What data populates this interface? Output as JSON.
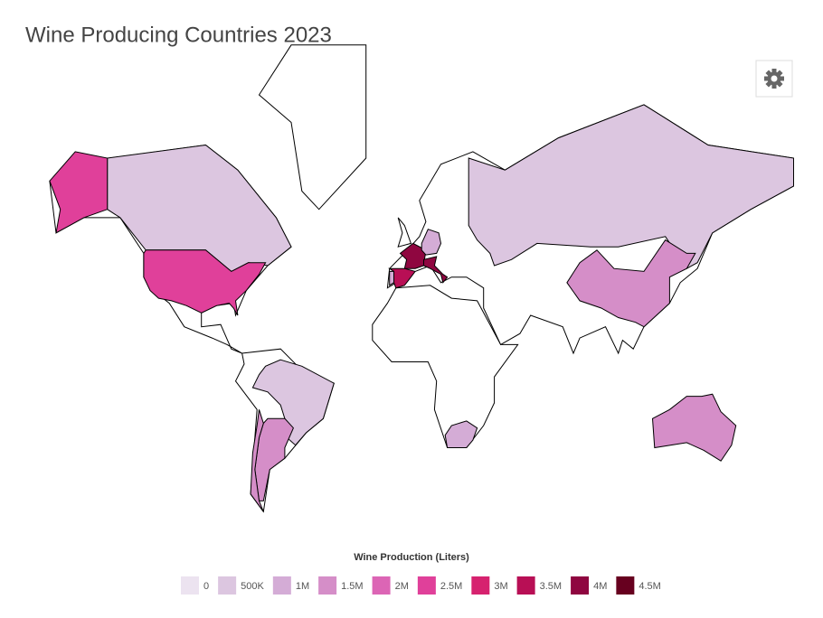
{
  "chart_data": {
    "type": "choropleth",
    "title": "Wine Producing Countries 2023",
    "legend_title": "Wine Production (Liters)",
    "legend": [
      {
        "value": 0,
        "color": "#ece3f0"
      },
      {
        "value": 500000,
        "label": "500K",
        "color": "#dcc6e0"
      },
      {
        "value": 1000000,
        "label": "1M",
        "color": "#d4acd6"
      },
      {
        "value": 1500000,
        "label": "1.5M",
        "color": "#d58ec8"
      },
      {
        "value": 2000000,
        "label": "2M",
        "color": "#dc65b5"
      },
      {
        "value": 2500000,
        "label": "2.5M",
        "color": "#e0409a"
      },
      {
        "value": 3000000,
        "label": "3M",
        "color": "#d6226f"
      },
      {
        "value": 3500000,
        "label": "3.5M",
        "color": "#b80f55"
      },
      {
        "value": 4000000,
        "label": "4M",
        "color": "#8f0640"
      },
      {
        "value": 4500000,
        "label": "4.5M",
        "color": "#67001f"
      }
    ],
    "values": [
      500000,
      2500000,
      500000,
      1500000,
      1500000,
      1000000,
      500000,
      1500000,
      1500000,
      4000000,
      3500000,
      1000000,
      4000000,
      1000000
    ]
  }
}
